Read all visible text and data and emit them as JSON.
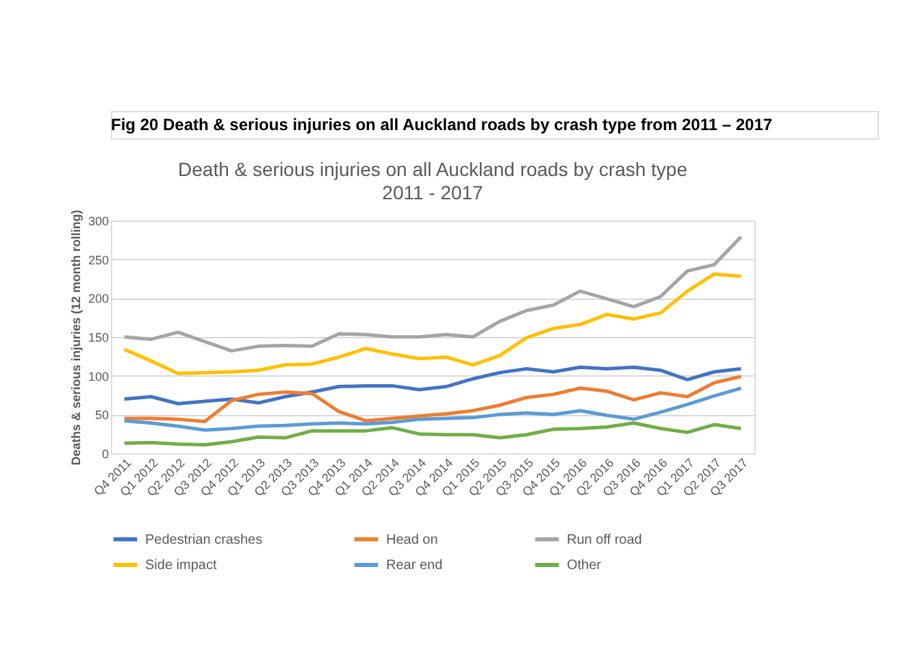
{
  "chart_data": {
    "type": "line",
    "title": "Death & serious injuries on all Auckland roads by crash type",
    "subtitle": "2011 - 2017",
    "ylabel": "Deaths & serious injuries (12 month rolling)",
    "annotations": [
      "Fig 20 Death & serious injuries on all Auckland roads by crash type from 2011 – 2017"
    ],
    "categories": [
      "Q4 2011",
      "Q1 2012",
      "Q2 2012",
      "Q3 2012",
      "Q4 2012",
      "Q1 2013",
      "Q2 2013",
      "Q3 2013",
      "Q4 2013",
      "Q1 2014",
      "Q2 2014",
      "Q3 2014",
      "Q4 2014",
      "Q1 2015",
      "Q2 2015",
      "Q3 2015",
      "Q4 2015",
      "Q1 2016",
      "Q2 2016",
      "Q3 2016",
      "Q4 2016",
      "Q1 2017",
      "Q2 2017",
      "Q3 2017"
    ],
    "ylim": [
      0,
      300
    ],
    "yticks": [
      0,
      50,
      100,
      150,
      200,
      250,
      300
    ],
    "grid": "y",
    "legend": "bottom",
    "marker": "none",
    "line_style": "solid",
    "series": [
      {
        "name": "Pedestrian crashes",
        "color": "#4472c4",
        "values": [
          70,
          73,
          64,
          67,
          70,
          65,
          73,
          79,
          86,
          87,
          87,
          82,
          86,
          96,
          104,
          109,
          105,
          111,
          109,
          111,
          107,
          95,
          105,
          109
        ]
      },
      {
        "name": "Head on",
        "color": "#ed7d31",
        "values": [
          45,
          45,
          44,
          41,
          68,
          76,
          79,
          77,
          54,
          42,
          45,
          48,
          51,
          55,
          62,
          72,
          76,
          84,
          80,
          69,
          78,
          73,
          91,
          99
        ]
      },
      {
        "name": "Run off road",
        "color": "#a5a5a5",
        "values": [
          150,
          147,
          156,
          144,
          132,
          138,
          139,
          138,
          154,
          153,
          150,
          150,
          153,
          150,
          170,
          184,
          191,
          209,
          199,
          189,
          202,
          235,
          243,
          279
        ]
      },
      {
        "name": "Side impact",
        "color": "#ffc000",
        "values": [
          134,
          119,
          103,
          104,
          105,
          107,
          114,
          115,
          124,
          135,
          128,
          122,
          124,
          114,
          126,
          149,
          161,
          166,
          179,
          173,
          181,
          209,
          231,
          228
        ]
      },
      {
        "name": "Rear end",
        "color": "#5b9bd5",
        "values": [
          42,
          39,
          35,
          30,
          32,
          35,
          36,
          38,
          39,
          38,
          40,
          44,
          45,
          46,
          50,
          52,
          50,
          55,
          49,
          44,
          53,
          63,
          74,
          84
        ]
      },
      {
        "name": "Other",
        "color": "#70ad47",
        "values": [
          13,
          14,
          12,
          11,
          15,
          21,
          20,
          29,
          29,
          29,
          33,
          25,
          24,
          24,
          20,
          24,
          31,
          32,
          34,
          39,
          32,
          27,
          37,
          32
        ]
      }
    ]
  }
}
